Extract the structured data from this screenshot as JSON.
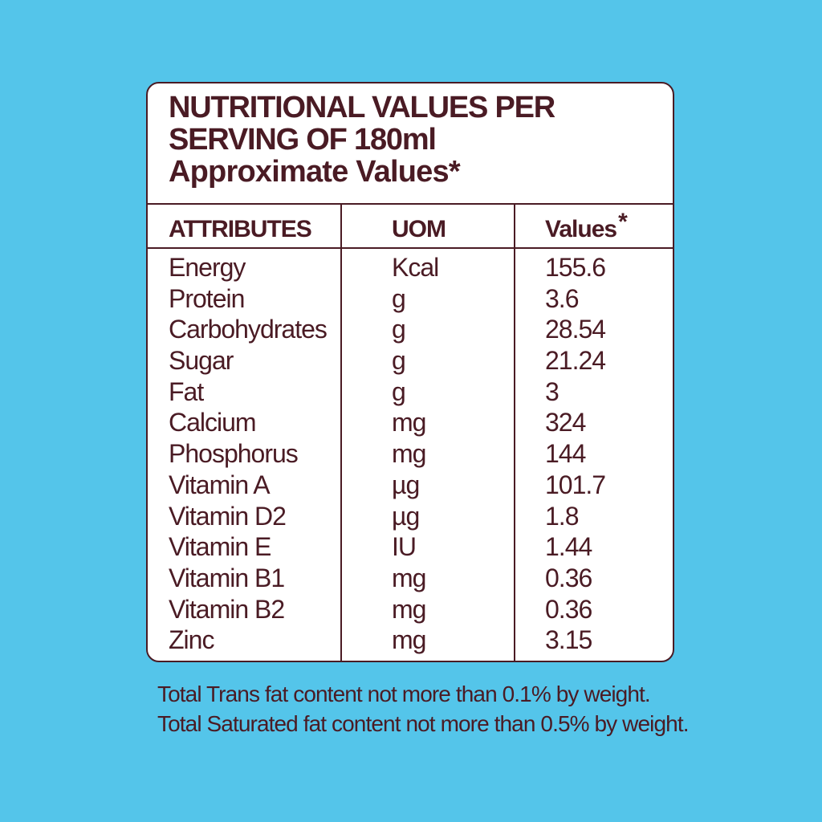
{
  "title": {
    "line1": "NUTRITIONAL VALUES PER",
    "line2": "SERVING OF 180ml",
    "line3": "Approximate Values*"
  },
  "table": {
    "headers": {
      "attributes": "ATTRIBUTES",
      "uom": "UOM",
      "values": "Values",
      "values_marker": "*"
    },
    "rows": [
      {
        "attribute": "Energy",
        "uom": "Kcal",
        "value": "155.6"
      },
      {
        "attribute": "Protein",
        "uom": "g",
        "value": "3.6"
      },
      {
        "attribute": "Carbohydrates",
        "uom": "g",
        "value": "28.54"
      },
      {
        "attribute": "Sugar",
        "uom": "g",
        "value": "21.24"
      },
      {
        "attribute": "Fat",
        "uom": "g",
        "value": "3"
      },
      {
        "attribute": "Calcium",
        "uom": "mg",
        "value": "324"
      },
      {
        "attribute": "Phosphorus",
        "uom": "mg",
        "value": "144"
      },
      {
        "attribute": "Vitamin A",
        "uom": "µg",
        "value": "101.7"
      },
      {
        "attribute": "Vitamin D2",
        "uom": "µg",
        "value": "1.8"
      },
      {
        "attribute": "Vitamin E",
        "uom": "IU",
        "value": "1.44"
      },
      {
        "attribute": "Vitamin B1",
        "uom": "mg",
        "value": "0.36"
      },
      {
        "attribute": "Vitamin B2",
        "uom": "mg",
        "value": "0.36"
      },
      {
        "attribute": "Zinc",
        "uom": "mg",
        "value": "3.15"
      }
    ]
  },
  "footer": {
    "line1": "Total Trans fat content not more than 0.1% by weight.",
    "line2": "Total Saturated fat content not more than 0.5% by weight."
  },
  "colors": {
    "background": "#54c5ea",
    "panel": "#ffffff",
    "text": "#4a1b24"
  }
}
